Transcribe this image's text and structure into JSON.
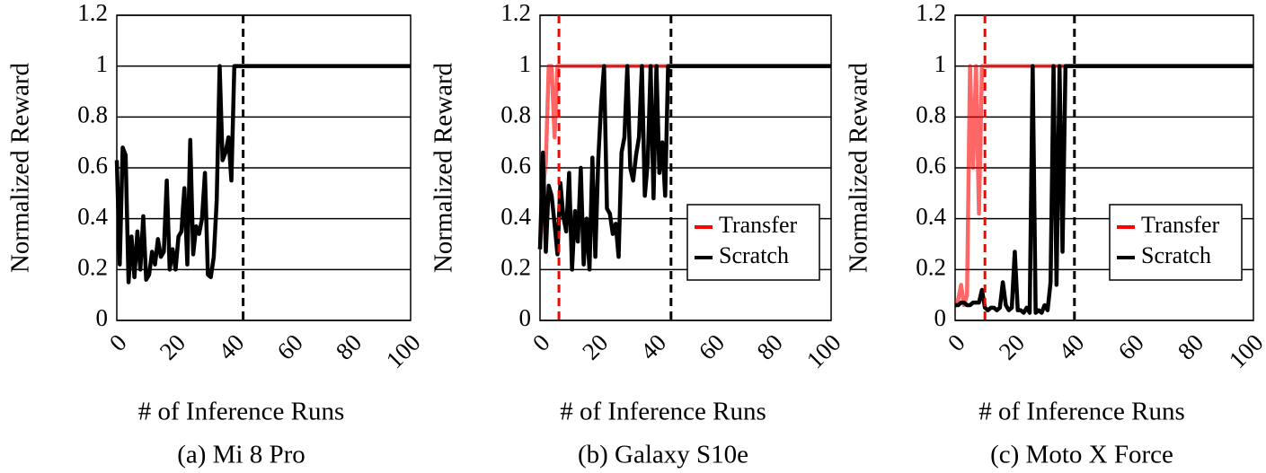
{
  "chart_data": [
    {
      "type": "line",
      "caption": "(a) Mi 8 Pro",
      "xlabel": "# of Inference Runs",
      "ylabel": "Normalized Reward",
      "xlim": [
        0,
        100
      ],
      "xticks": [
        0,
        20,
        40,
        60,
        80,
        100
      ],
      "ylim": [
        0,
        1.2
      ],
      "yticks": [
        0,
        0.2,
        0.4,
        0.6,
        0.8,
        1,
        1.2
      ],
      "grid": true,
      "vlines": [
        {
          "x": 43,
          "color": "#000000"
        }
      ],
      "series": [
        {
          "color": "#000000",
          "x": [
            0,
            1,
            2,
            3,
            4,
            5,
            6,
            7,
            8,
            9,
            10,
            11,
            12,
            13,
            14,
            15,
            16,
            17,
            18,
            19,
            20,
            21,
            22,
            23,
            24,
            25,
            26,
            27,
            28,
            29,
            30,
            31,
            32,
            33,
            34,
            35,
            36,
            37,
            38,
            39,
            40,
            41,
            42,
            43,
            100
          ],
          "values": [
            0.63,
            0.22,
            0.68,
            0.65,
            0.15,
            0.33,
            0.17,
            0.35,
            0.2,
            0.41,
            0.16,
            0.18,
            0.27,
            0.22,
            0.32,
            0.25,
            0.27,
            0.55,
            0.2,
            0.28,
            0.2,
            0.33,
            0.35,
            0.52,
            0.22,
            0.71,
            0.26,
            0.37,
            0.34,
            0.4,
            0.58,
            0.18,
            0.17,
            0.25,
            0.47,
            1.0,
            0.63,
            0.66,
            0.72,
            0.55,
            1.0,
            1.0,
            1.0,
            1.0,
            1.0
          ]
        }
      ]
    },
    {
      "type": "line",
      "caption": "(b) Galaxy S10e",
      "xlabel": "# of Inference Runs",
      "ylabel": "Normalized Reward",
      "xlim": [
        0,
        100
      ],
      "xticks": [
        0,
        20,
        40,
        60,
        80,
        100
      ],
      "ylim": [
        0,
        1.2
      ],
      "yticks": [
        0,
        0.2,
        0.4,
        0.6,
        0.8,
        1,
        1.2
      ],
      "grid": true,
      "legend": "lower right",
      "vlines": [
        {
          "x": 6.5,
          "color": "#ff0000"
        },
        {
          "x": 45,
          "color": "#000000"
        }
      ],
      "series": [
        {
          "name": "Transfer",
          "color": "#ff0000",
          "x": [
            0,
            1,
            2,
            3,
            4,
            5,
            6,
            100
          ],
          "values": [
            0.28,
            0.52,
            0.62,
            1.0,
            1.0,
            0.72,
            1.0,
            1.0
          ]
        },
        {
          "name": "Scratch",
          "color": "#000000",
          "x": [
            0,
            1,
            2,
            3,
            4,
            5,
            6,
            7,
            8,
            9,
            10,
            11,
            12,
            13,
            14,
            15,
            16,
            17,
            18,
            19,
            20,
            21,
            22,
            23,
            24,
            25,
            26,
            27,
            28,
            29,
            30,
            31,
            32,
            33,
            34,
            35,
            36,
            37,
            38,
            39,
            40,
            41,
            42,
            43,
            44,
            45,
            100
          ],
          "values": [
            0.28,
            0.66,
            0.27,
            0.53,
            0.49,
            0.38,
            0.26,
            0.54,
            0.41,
            0.35,
            0.58,
            0.2,
            0.43,
            0.31,
            0.6,
            0.22,
            0.4,
            0.2,
            0.64,
            0.25,
            0.63,
            0.85,
            1.0,
            0.44,
            0.42,
            0.34,
            0.38,
            0.25,
            0.66,
            0.72,
            1.0,
            0.6,
            0.55,
            0.65,
            0.72,
            1.0,
            0.49,
            0.62,
            1.0,
            0.48,
            1.0,
            0.58,
            0.7,
            0.49,
            1.0,
            1.0,
            1.0
          ]
        }
      ]
    },
    {
      "type": "line",
      "caption": "(c) Moto X Force",
      "xlabel": "# of Inference Runs",
      "ylabel": "Normalized Reward",
      "xlim": [
        0,
        100
      ],
      "xticks": [
        0,
        20,
        40,
        60,
        80,
        100
      ],
      "ylim": [
        0,
        1.2
      ],
      "yticks": [
        0,
        0.2,
        0.4,
        0.6,
        0.8,
        1,
        1.2
      ],
      "grid": true,
      "legend": "lower right",
      "vlines": [
        {
          "x": 10,
          "color": "#ff0000"
        },
        {
          "x": 40,
          "color": "#000000"
        }
      ],
      "series": [
        {
          "name": "Transfer",
          "color": "#ff0000",
          "x": [
            0,
            1,
            2,
            3,
            4,
            5,
            6,
            7,
            8,
            9,
            10,
            100
          ],
          "values": [
            0.07,
            0.08,
            0.14,
            0.06,
            0.1,
            1.0,
            0.6,
            1.0,
            0.42,
            1.0,
            1.0,
            1.0
          ]
        },
        {
          "name": "Scratch",
          "color": "#000000",
          "x": [
            0,
            1,
            2,
            3,
            4,
            5,
            6,
            7,
            8,
            9,
            10,
            11,
            12,
            13,
            14,
            15,
            16,
            17,
            18,
            19,
            20,
            21,
            22,
            23,
            24,
            25,
            26,
            27,
            28,
            29,
            30,
            31,
            32,
            33,
            34,
            35,
            36,
            37,
            38,
            39,
            40,
            41,
            100
          ],
          "values": [
            0.06,
            0.06,
            0.07,
            0.07,
            0.06,
            0.06,
            0.07,
            0.07,
            0.07,
            0.12,
            0.05,
            0.04,
            0.05,
            0.05,
            0.04,
            0.05,
            0.15,
            0.06,
            0.04,
            0.05,
            0.27,
            0.04,
            0.04,
            0.03,
            0.05,
            0.03,
            1.0,
            0.03,
            0.04,
            0.03,
            0.06,
            0.04,
            0.15,
            1.0,
            0.14,
            1.0,
            0.27,
            1.0,
            1.0,
            1.0,
            1.0,
            1.0,
            1.0
          ]
        }
      ]
    }
  ]
}
